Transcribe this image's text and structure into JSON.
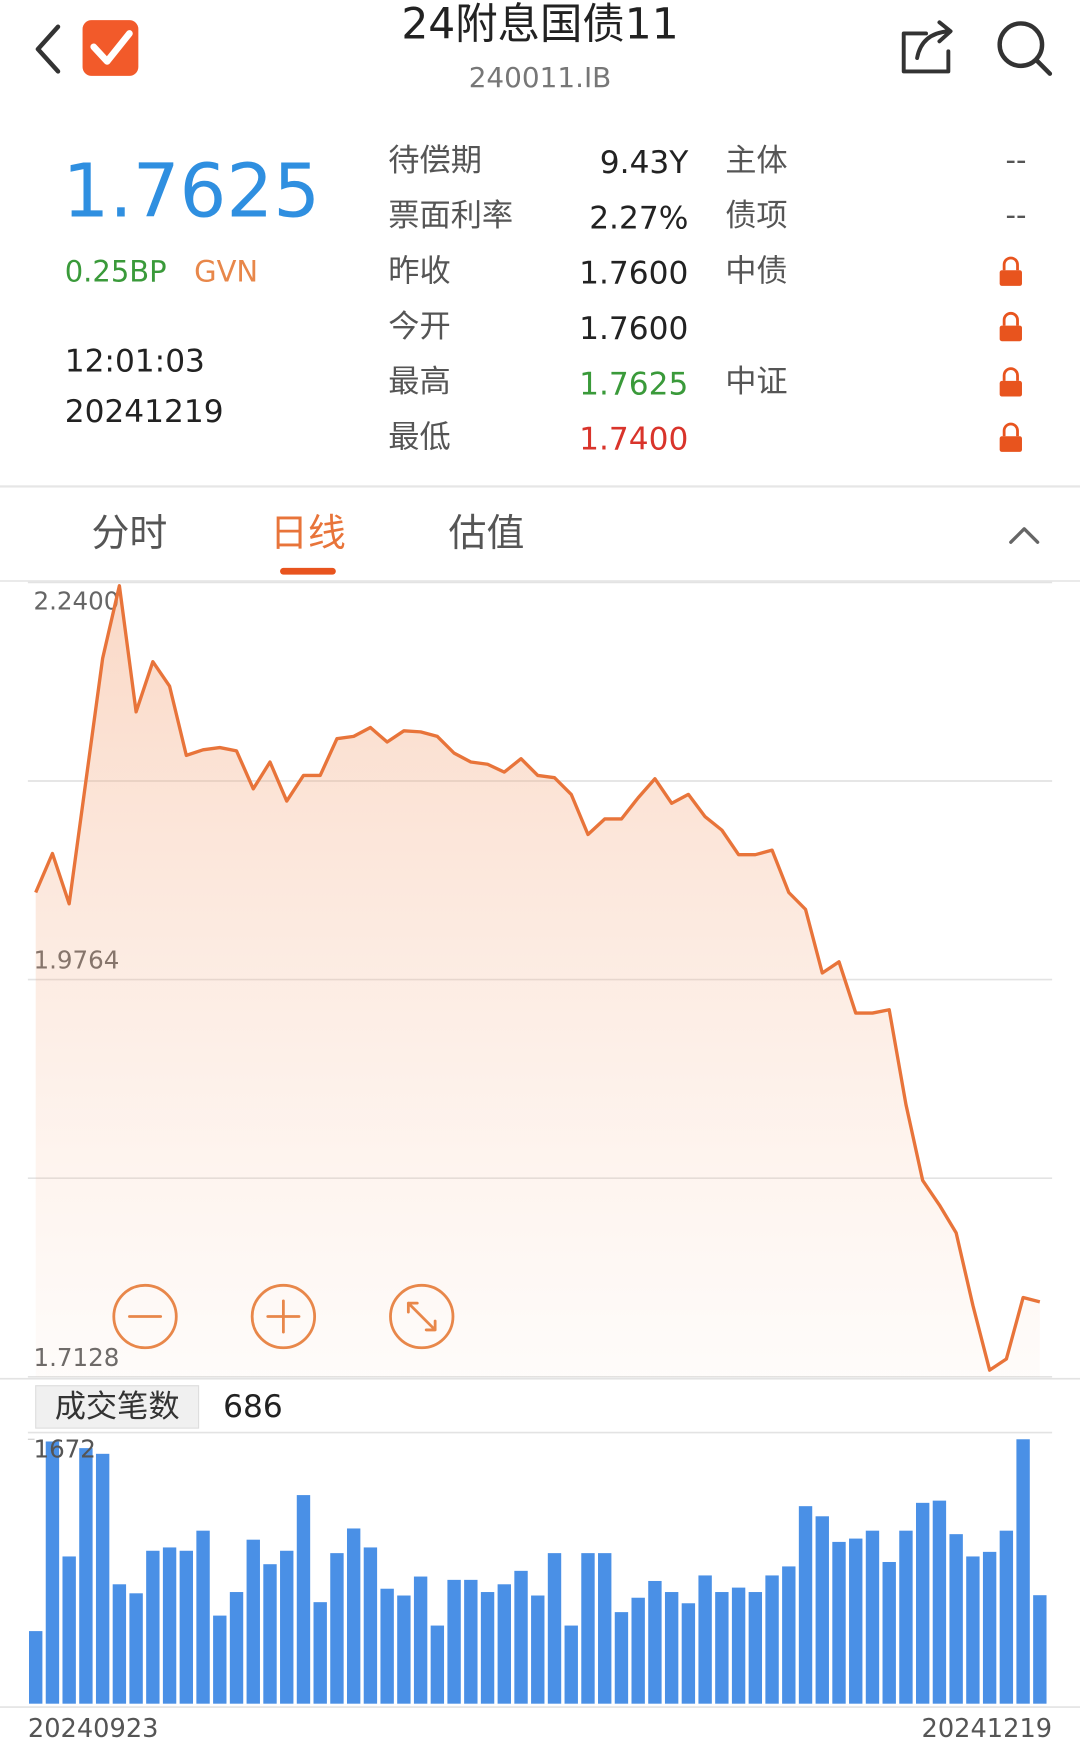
{
  "header": {
    "title": "24附息国债11",
    "subtitle": "240011.IB"
  },
  "quote": {
    "price": "1.7625",
    "change": "0.25BP",
    "source": "GVN",
    "time": "12:01:03",
    "date": "20241219"
  },
  "fields": [
    {
      "label": "待偿期",
      "value": "9.43Y",
      "side_label": "主体",
      "side_value": "--"
    },
    {
      "label": "票面利率",
      "value": "2.27%",
      "side_label": "债项",
      "side_value": "--"
    },
    {
      "label": "昨收",
      "value": "1.7600",
      "side_label": "中债",
      "locked": true
    },
    {
      "label": "今开",
      "value": "1.7600",
      "locked": true
    },
    {
      "label": "最高",
      "value": "1.7625",
      "color": "#3a9a3a",
      "side_label": "中证",
      "locked": true
    },
    {
      "label": "最低",
      "value": "1.7400",
      "color": "#d9342b",
      "locked": true
    }
  ],
  "tabs": [
    {
      "label": "分时"
    },
    {
      "label": "日线",
      "active": true
    },
    {
      "label": "估值"
    }
  ],
  "chart_data": [
    {
      "type": "line",
      "area": true,
      "color": "#e8743a",
      "values": [
        2.0342,
        2.0601,
        2.0267,
        2.1082,
        2.1896,
        2.2378,
        2.1541,
        2.1874,
        2.1711,
        2.1252,
        2.1289,
        2.1304,
        2.1282,
        2.103,
        2.1208,
        2.0949,
        2.1119,
        2.1119,
        2.1363,
        2.1378,
        2.1437,
        2.1341,
        2.1415,
        2.1408,
        2.1378,
        2.1267,
        2.1208,
        2.1193,
        2.1141,
        2.123,
        2.1119,
        2.1104,
        2.0993,
        2.0727,
        2.083,
        2.083,
        2.0971,
        2.1097,
        2.0934,
        2.0993,
        2.0845,
        2.0756,
        2.0593,
        2.0593,
        2.0623,
        2.0342,
        2.023,
        1.9808,
        1.9882,
        1.9542,
        1.9542,
        1.9564,
        1.8935,
        1.8431,
        1.8268,
        1.8083,
        1.7602,
        1.7172,
        1.7246,
        1.7654,
        1.7625
      ],
      "ylim": [
        1.7128,
        2.24
      ],
      "yticks": [
        {
          "value": 1.7128,
          "label": "1.7128"
        },
        {
          "value": 1.8446,
          "label": null
        },
        {
          "value": 1.9764,
          "label": "1.9764"
        },
        {
          "value": 2.1082,
          "label": null
        },
        {
          "value": 2.24,
          "label": "2.2400"
        }
      ],
      "grid": true
    },
    {
      "type": "bar",
      "title": "成交笔数",
      "color": "#4a90e6",
      "categories": [
        "20240923",
        null,
        null,
        null,
        null,
        null,
        null,
        null,
        null,
        null,
        null,
        null,
        null,
        null,
        null,
        null,
        null,
        null,
        null,
        null,
        null,
        null,
        null,
        null,
        null,
        null,
        null,
        null,
        null,
        null,
        null,
        null,
        null,
        null,
        null,
        null,
        null,
        null,
        null,
        null,
        null,
        null,
        null,
        null,
        null,
        null,
        null,
        null,
        null,
        null,
        null,
        null,
        null,
        null,
        null,
        null,
        null,
        null,
        null,
        null,
        "20241219"
      ],
      "values": [
        459,
        1658,
        931,
        1616,
        1580,
        755,
        698,
        967,
        988,
        967,
        1094,
        557,
        706,
        1037,
        882,
        967,
        1319,
        642,
        952,
        1108,
        988,
        727,
        684,
        804,
        494,
        783,
        783,
        706,
        755,
        840,
        684,
        952,
        494,
        952,
        952,
        579,
        670,
        776,
        706,
        635,
        811,
        706,
        734,
        706,
        811,
        868,
        1249,
        1185,
        1023,
        1044,
        1094,
        896,
        1094,
        1270,
        1284,
        1072,
        931,
        960,
        1094,
        1672,
        686
      ],
      "ylim": [
        0,
        1672
      ],
      "yticks": [
        1672
      ]
    }
  ]
}
